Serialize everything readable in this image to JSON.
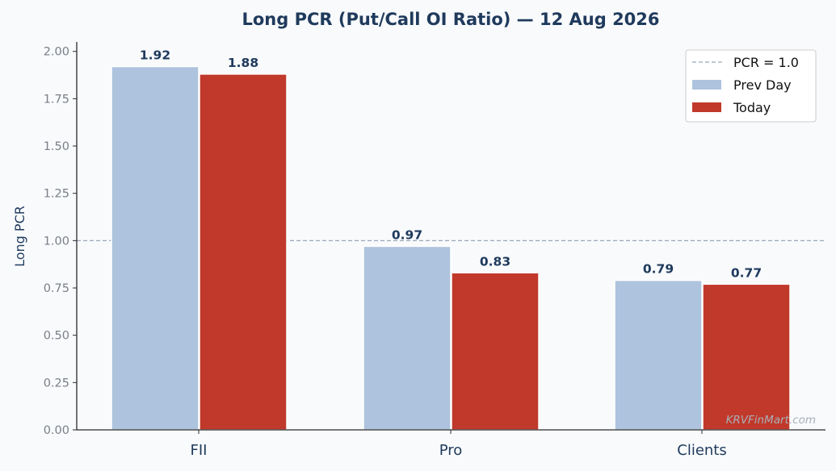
{
  "chart_data": {
    "type": "bar",
    "title": "Long PCR (Put/Call OI Ratio) — 12 Aug 2026",
    "xlabel": "",
    "ylabel": "Long PCR",
    "categories": [
      "FII",
      "Pro",
      "Clients"
    ],
    "series": [
      {
        "name": "Prev Day",
        "color": "#aec3dd",
        "values": [
          1.92,
          0.97,
          0.79
        ]
      },
      {
        "name": "Today",
        "color": "#c0392b",
        "values": [
          1.88,
          0.83,
          0.77
        ]
      }
    ],
    "data_labels": [
      [
        "1.92",
        "0.97",
        "0.79"
      ],
      [
        "1.88",
        "0.83",
        "0.77"
      ]
    ],
    "ylim": [
      0,
      2.05
    ],
    "yticks": [
      "0.00",
      "0.25",
      "0.50",
      "0.75",
      "1.00",
      "1.25",
      "1.50",
      "1.75",
      "2.00"
    ],
    "reference_line": {
      "value": 1.0,
      "label": "PCR = 1.0",
      "color": "#9aa6b8"
    },
    "legend_position": "top-right",
    "grid": false,
    "watermark": "KRVFinMart.com"
  }
}
